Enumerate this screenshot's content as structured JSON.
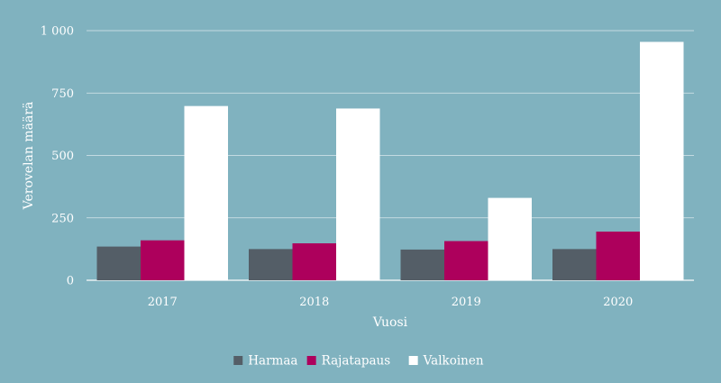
{
  "chart_data": {
    "type": "bar",
    "title": "",
    "xlabel": "Vuosi",
    "ylabel": "Verovelan määrä",
    "categories": [
      "2017",
      "2018",
      "2019",
      "2020"
    ],
    "series": [
      {
        "name": "Harmaa",
        "values": [
          135,
          125,
          123,
          125
        ],
        "color": "#545e67"
      },
      {
        "name": "Rajatapaus",
        "values": [
          160,
          148,
          157,
          195
        ],
        "color": "#ad005c"
      },
      {
        "name": "Valkoinen",
        "values": [
          698,
          688,
          330,
          955
        ],
        "color": "#ffffff"
      }
    ],
    "ylim": [
      0,
      1000
    ],
    "yticks": [
      0,
      250,
      500,
      750,
      1000
    ],
    "ytick_labels": [
      "0",
      "250",
      "500",
      "750",
      "1 000"
    ],
    "grid": true,
    "legend_position": "bottom",
    "background_color": "#80b2bf",
    "gridline_color": "#ffffff"
  }
}
